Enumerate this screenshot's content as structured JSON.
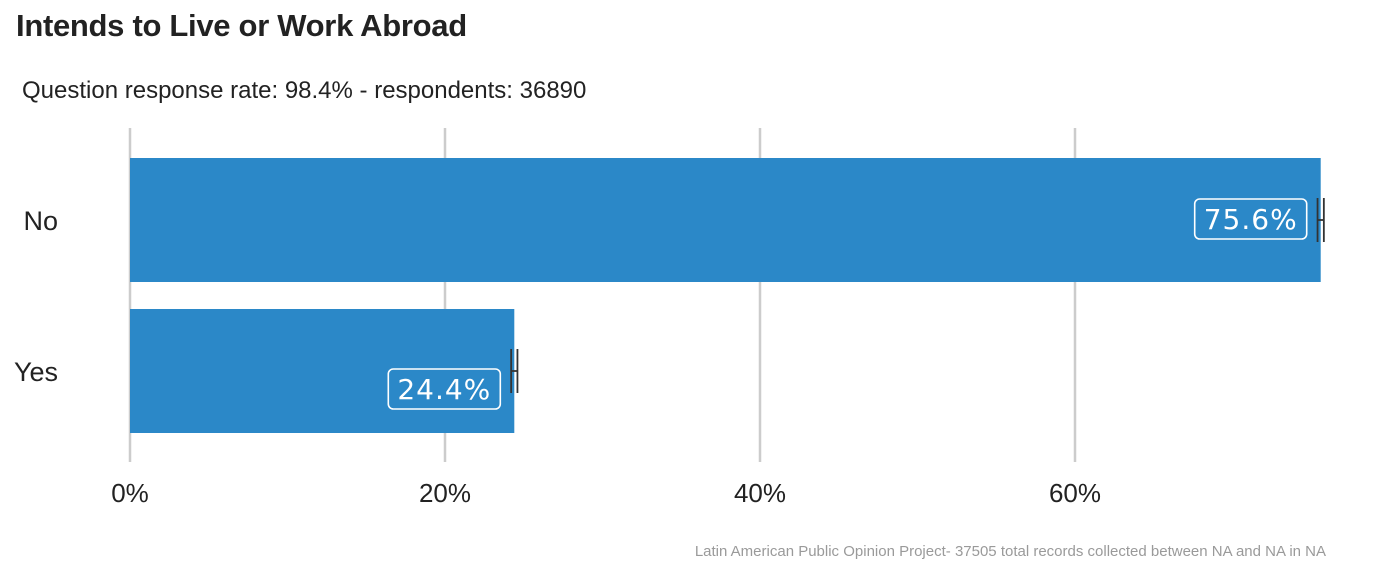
{
  "chart_data": {
    "type": "bar",
    "orientation": "horizontal",
    "title": "Intends to Live or Work Abroad",
    "subtitle": "Question response rate: 98.4%  - respondents: 36890",
    "caption": "Latin American Public Opinion Project- 37505 total records collected between NA and NA in  NA",
    "categories": [
      "No",
      "Yes"
    ],
    "values": [
      75.6,
      24.4
    ],
    "value_labels": [
      "75.6%",
      "24.4%"
    ],
    "error_bars": [
      [
        75.4,
        75.8
      ],
      [
        24.2,
        24.6
      ]
    ],
    "xlim": [
      0,
      76
    ],
    "xticks": [
      0,
      20,
      40,
      60
    ],
    "xtick_labels": [
      "0%",
      "20%",
      "40%",
      "60%"
    ],
    "grid": "vertical",
    "bar_color": "#2b88c8",
    "grid_color": "#cccccc"
  }
}
